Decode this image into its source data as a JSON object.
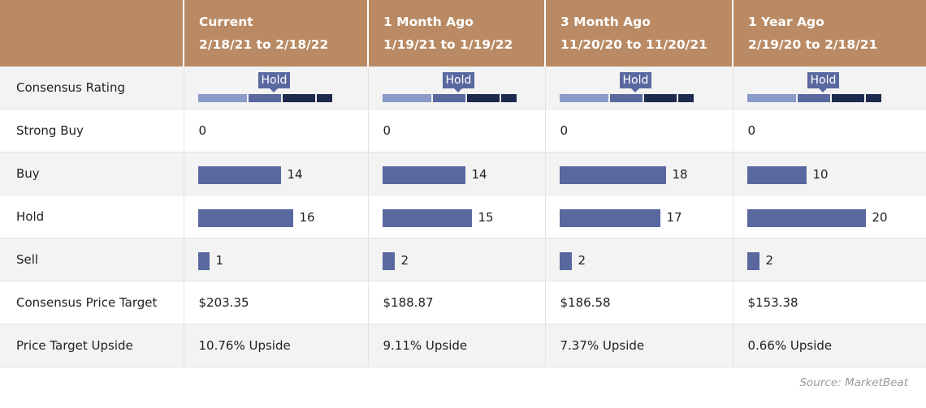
{
  "chart_data": {
    "type": "table",
    "columns": [
      {
        "title": "Current",
        "dates": "2/18/21 to 2/18/22"
      },
      {
        "title": "1 Month Ago",
        "dates": "1/19/21 to 1/19/22"
      },
      {
        "title": "3 Month Ago",
        "dates": "11/20/20 to 11/20/21"
      },
      {
        "title": "1 Year Ago",
        "dates": "2/19/20 to 2/18/21"
      }
    ],
    "row_labels": {
      "consensus_rating": "Consensus Rating",
      "strong_buy": "Strong Buy",
      "buy": "Buy",
      "hold": "Hold",
      "sell": "Sell",
      "price_target": "Consensus Price Target",
      "upside": "Price Target Upside"
    },
    "consensus_rating": [
      "Hold",
      "Hold",
      "Hold",
      "Hold"
    ],
    "strong_buy": [
      0,
      0,
      0,
      0
    ],
    "buy": [
      14,
      14,
      18,
      10
    ],
    "hold": [
      16,
      15,
      17,
      20
    ],
    "sell": [
      1,
      2,
      2,
      2
    ],
    "price_target": [
      "$203.35",
      "$188.87",
      "$186.58",
      "$153.38"
    ],
    "upside": [
      "10.76% Upside",
      "9.11% Upside",
      "7.37% Upside",
      "0.66% Upside"
    ],
    "bar_color": "#5a68a0",
    "header_color": "#b98a63"
  },
  "source": "Source: MarketBeat"
}
